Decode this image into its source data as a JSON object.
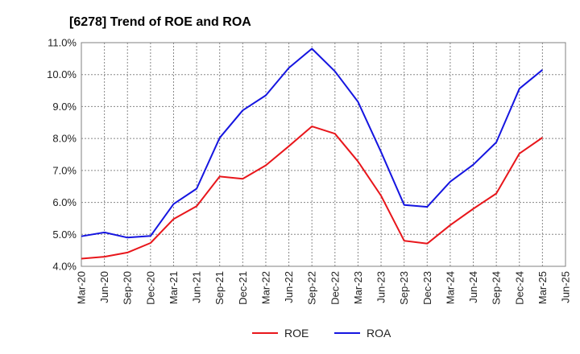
{
  "chart_data": {
    "type": "line",
    "title": "[6278]  Trend of ROE and ROA",
    "x": [
      "Mar-20",
      "Jun-20",
      "Sep-20",
      "Dec-20",
      "Mar-21",
      "Jun-21",
      "Sep-21",
      "Dec-21",
      "Mar-22",
      "Jun-22",
      "Sep-22",
      "Dec-22",
      "Mar-23",
      "Jun-23",
      "Sep-23",
      "Dec-23",
      "Mar-24",
      "Jun-24",
      "Sep-24",
      "Dec-24",
      "Mar-25",
      "Jun-25"
    ],
    "ylim": [
      4.0,
      11.0
    ],
    "y_ticks": [
      "4.0%",
      "5.0%",
      "6.0%",
      "7.0%",
      "8.0%",
      "9.0%",
      "10.0%",
      "11.0%"
    ],
    "grid": true,
    "legend_position": "bottom",
    "series": [
      {
        "name": "ROE",
        "color": "#e8161b",
        "values": [
          4.24,
          4.3,
          4.43,
          4.73,
          5.48,
          5.88,
          6.81,
          6.74,
          7.16,
          7.76,
          8.38,
          8.15,
          7.28,
          6.21,
          4.8,
          4.71,
          5.29,
          5.8,
          6.28,
          7.53,
          8.03,
          null
        ]
      },
      {
        "name": "ROA",
        "color": "#1515e0",
        "values": [
          4.94,
          5.06,
          4.9,
          4.95,
          5.95,
          6.43,
          8.02,
          8.88,
          9.35,
          10.21,
          10.81,
          10.1,
          9.15,
          7.58,
          5.92,
          5.86,
          6.65,
          7.18,
          7.88,
          9.56,
          10.15,
          null
        ]
      }
    ]
  }
}
